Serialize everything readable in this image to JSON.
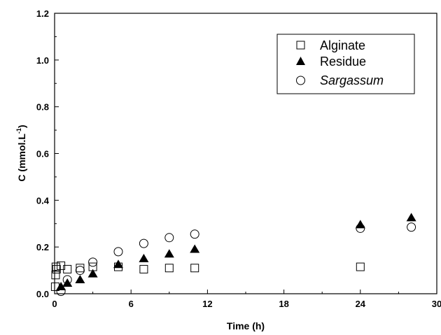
{
  "chart_data": {
    "type": "scatter",
    "xlabel": "Time (h)",
    "ylabel_main": "C (mmol.L",
    "ylabel_sup": "-1",
    "ylabel_close": ")",
    "xlim": [
      0,
      30
    ],
    "ylim": [
      0,
      1.2
    ],
    "xticks": [
      0,
      6,
      12,
      18,
      24,
      30
    ],
    "yticks": [
      0.0,
      0.2,
      0.4,
      0.6,
      0.8,
      1.0,
      1.2
    ],
    "ytick_labels": [
      "0.0",
      "0.2",
      "0.4",
      "0.6",
      "0.8",
      "1.0",
      "1.2"
    ],
    "grid": false,
    "legend": "top-right",
    "series": [
      {
        "name": "Alginate",
        "marker": "square-open",
        "points": [
          [
            0.05,
            0.03
          ],
          [
            0.08,
            0.08
          ],
          [
            0.1,
            0.115
          ],
          [
            0.15,
            0.105
          ],
          [
            0.5,
            0.12
          ],
          [
            1.0,
            0.105
          ],
          [
            2.0,
            0.11
          ],
          [
            3.0,
            0.115
          ],
          [
            5.0,
            0.115
          ],
          [
            7.0,
            0.105
          ],
          [
            9.0,
            0.11
          ],
          [
            11.0,
            0.11
          ],
          [
            24.0,
            0.115
          ]
        ]
      },
      {
        "name": "Residue",
        "marker": "triangle-filled",
        "points": [
          [
            0.5,
            0.03
          ],
          [
            1.0,
            0.045
          ],
          [
            2.0,
            0.06
          ],
          [
            3.0,
            0.085
          ],
          [
            5.0,
            0.125
          ],
          [
            7.0,
            0.15
          ],
          [
            9.0,
            0.17
          ],
          [
            11.0,
            0.19
          ],
          [
            24.0,
            0.295
          ],
          [
            28.0,
            0.325
          ]
        ]
      },
      {
        "name": "Sargassum",
        "name_style": "italic",
        "marker": "circle-open",
        "points": [
          [
            0.5,
            0.01
          ],
          [
            1.0,
            0.06
          ],
          [
            2.0,
            0.1
          ],
          [
            3.0,
            0.135
          ],
          [
            5.0,
            0.18
          ],
          [
            7.0,
            0.215
          ],
          [
            9.0,
            0.24
          ],
          [
            11.0,
            0.255
          ],
          [
            24.0,
            0.28
          ],
          [
            28.0,
            0.285
          ]
        ]
      }
    ]
  }
}
